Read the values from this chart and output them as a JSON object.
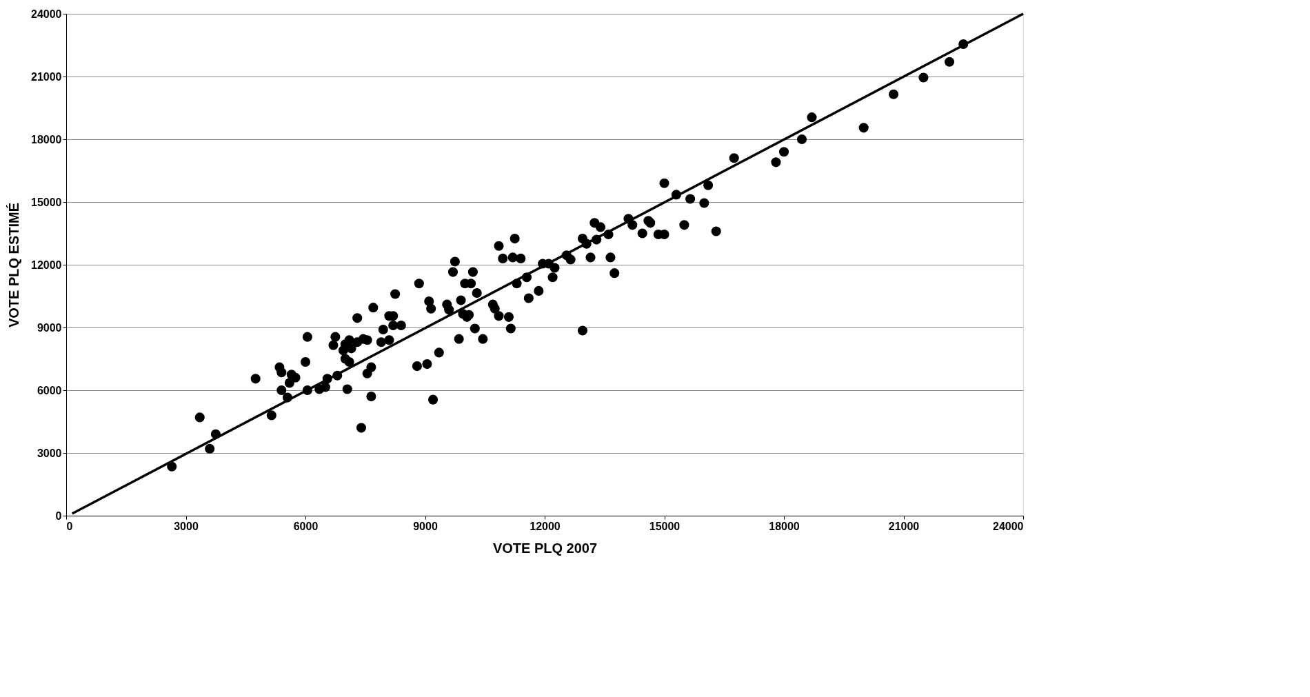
{
  "chart_data": {
    "type": "scatter",
    "xlabel": "VOTE PLQ 2007",
    "ylabel": "VOTE PLQ ESTIMÉ",
    "xlim": [
      0,
      24000
    ],
    "ylim": [
      0,
      24000
    ],
    "xticks": [
      0,
      3000,
      6000,
      9000,
      12000,
      15000,
      18000,
      21000,
      24000
    ],
    "yticks": [
      0,
      3000,
      6000,
      9000,
      12000,
      15000,
      18000,
      21000,
      24000
    ],
    "grid": "y",
    "series": [
      {
        "type": "scatter",
        "color": "#000000",
        "marker": "circle",
        "x": [
          2650,
          3350,
          3600,
          3750,
          4750,
          5150,
          5350,
          5400,
          5400,
          5550,
          5600,
          5650,
          5750,
          6000,
          6050,
          6050,
          6350,
          6500,
          6550,
          6750,
          6700,
          6800,
          6950,
          7000,
          7000,
          7050,
          7100,
          7100,
          7150,
          7300,
          7300,
          7400,
          7450,
          7550,
          7550,
          7650,
          7650,
          7700,
          7900,
          7950,
          8100,
          8100,
          8200,
          8200,
          8250,
          8400,
          8800,
          8850,
          9050,
          9100,
          9150,
          9200,
          9350,
          9550,
          9600,
          9700,
          9750,
          9850,
          9900,
          9950,
          10000,
          10050,
          10100,
          10150,
          10200,
          10250,
          10300,
          10450,
          10700,
          10750,
          10850,
          10850,
          10950,
          11100,
          11150,
          11200,
          11250,
          11300,
          11400,
          11550,
          11600,
          11850,
          11950,
          12100,
          12200,
          12250,
          12550,
          12650,
          12950,
          12950,
          13050,
          13150,
          13250,
          13300,
          13400,
          13600,
          13650,
          13750,
          14100,
          14200,
          14450,
          14600,
          14650,
          14850,
          15000,
          15000,
          15300,
          15500,
          15650,
          16000,
          16100,
          16300,
          16750,
          17800,
          18000,
          18450,
          18700,
          20000,
          20750,
          21500,
          22150,
          22500
        ],
        "values": [
          2350,
          4700,
          3200,
          3900,
          6550,
          4800,
          7100,
          6850,
          6000,
          5650,
          6350,
          6750,
          6600,
          7350,
          6000,
          8550,
          6050,
          6150,
          6550,
          8550,
          8150,
          6700,
          7900,
          8200,
          7500,
          6050,
          8400,
          7350,
          8000,
          8300,
          9450,
          4200,
          8450,
          8400,
          6800,
          7100,
          5700,
          9950,
          8300,
          8900,
          8400,
          9550,
          9550,
          9100,
          10600,
          9100,
          7150,
          11100,
          7250,
          10250,
          9900,
          5550,
          7800,
          10100,
          9850,
          11650,
          12150,
          8450,
          10300,
          9650,
          11100,
          9500,
          9600,
          11100,
          11650,
          8950,
          10650,
          8450,
          10100,
          9900,
          12900,
          9550,
          12300,
          9500,
          8950,
          12350,
          13250,
          11100,
          12300,
          11400,
          10400,
          10750,
          12050,
          12050,
          11400,
          11850,
          12450,
          12250,
          8850,
          13250,
          13000,
          12350,
          14000,
          13200,
          13800,
          13450,
          12350,
          11600,
          14200,
          13900,
          13500,
          14100,
          14000,
          13450,
          13450,
          15900,
          15350,
          13900,
          15150,
          14950,
          15800,
          13600,
          17100,
          16900,
          17400,
          18000,
          19050,
          18550,
          20150,
          20950,
          21700,
          22550
        ]
      },
      {
        "type": "line",
        "color": "#000000",
        "marker": "none",
        "line_style": "solid",
        "x": [
          150,
          24000
        ],
        "values": [
          100,
          24000
        ]
      }
    ]
  }
}
